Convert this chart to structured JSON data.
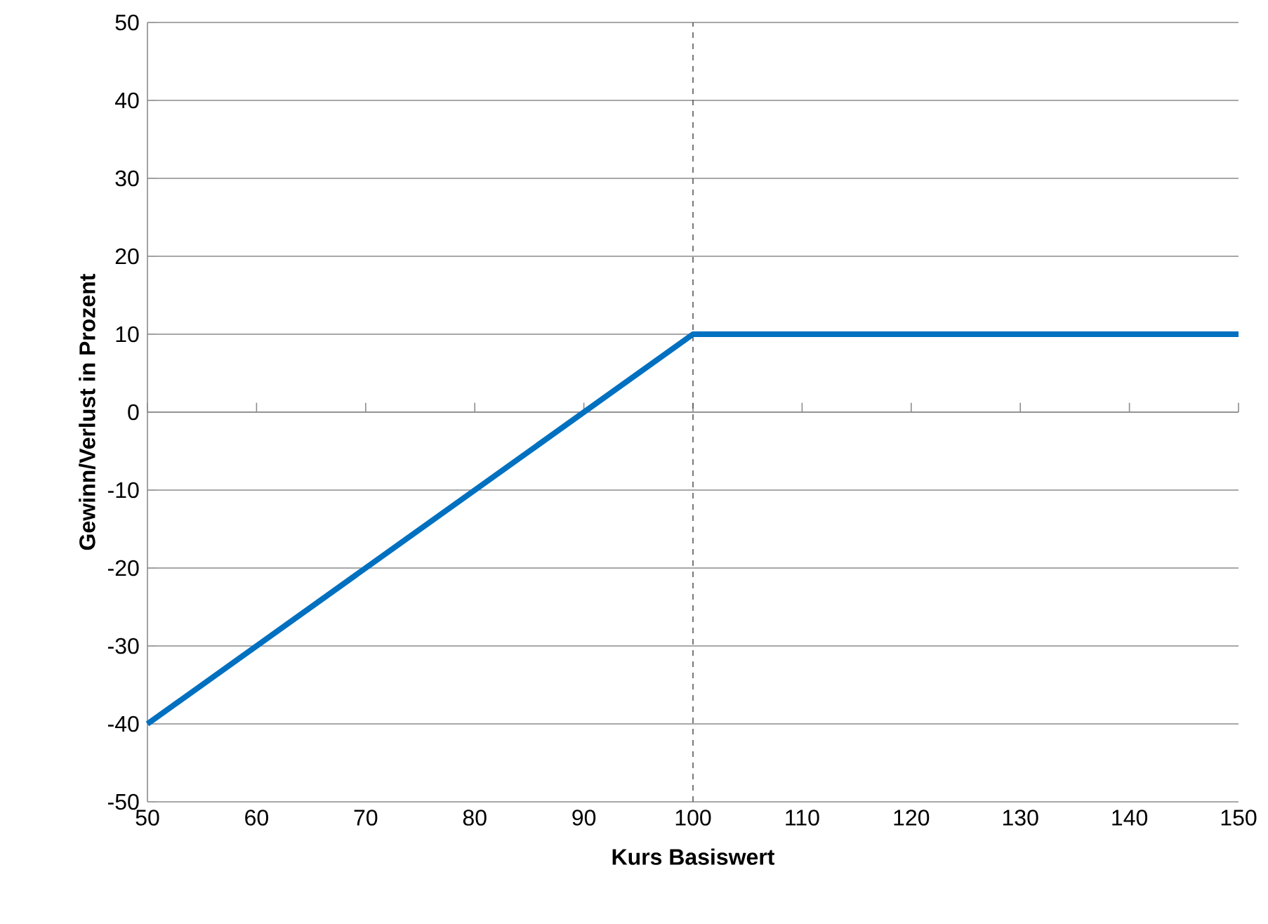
{
  "chart_data": {
    "type": "line",
    "xlabel": "Kurs Basiswert",
    "ylabel": "Gewinn/Verlust  in Prozent",
    "x": [
      50,
      100,
      150
    ],
    "series": [
      {
        "color": "#0070c0",
        "values": [
          -40,
          10,
          10
        ]
      }
    ],
    "xlim": [
      50,
      150
    ],
    "xticks": [
      50,
      60,
      70,
      80,
      90,
      100,
      110,
      120,
      130,
      140,
      150
    ],
    "ylim": [
      -50,
      50
    ],
    "yticks": [
      -50,
      -40,
      -30,
      -20,
      -10,
      0,
      10,
      20,
      30,
      40,
      50
    ],
    "grid": "y",
    "marker": "none",
    "line_style": "solid",
    "ref_lines": [
      {
        "axis": "x",
        "value": 100,
        "color": "#595959",
        "line_style": "dashed"
      }
    ]
  }
}
